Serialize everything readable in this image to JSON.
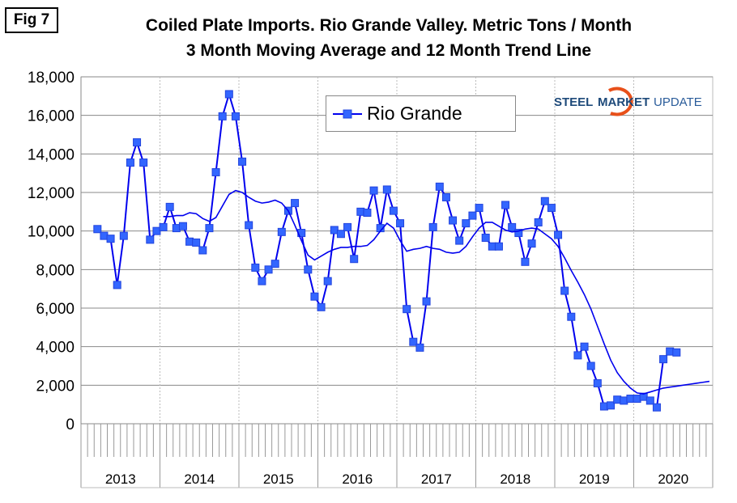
{
  "fig_label": "Fig 7",
  "chart_data": {
    "type": "line",
    "title": "Coiled Plate Imports. Rio Grande Valley. Metric Tons / Month",
    "subtitle": "3 Month Moving Average and 12 Month Trend Line",
    "ylim": [
      0,
      18000
    ],
    "yticks": [
      "0",
      "2,000",
      "4,000",
      "6,000",
      "8,000",
      "10,000",
      "12,000",
      "14,000",
      "16,000",
      "18,000"
    ],
    "years": [
      "2013",
      "2014",
      "2015",
      "2016",
      "2017",
      "2018",
      "2019",
      "2020"
    ],
    "legend": {
      "label": "Rio Grande",
      "placement": "top-center"
    },
    "logo": {
      "text1": "STEEL",
      "text2": "MARKET",
      "text3": "UPDATE"
    },
    "color": "#0000ee",
    "marker_color": "#3366ff",
    "series": [
      {
        "name": "Rio Grande",
        "start": "2013-03",
        "values": [
          10100,
          9750,
          9600,
          7200,
          9750,
          13550,
          14600,
          13550,
          9550,
          10000,
          10200,
          11250,
          10150,
          10250,
          9450,
          9400,
          9000,
          10150,
          13050,
          15950,
          17100,
          15950,
          13600,
          10300,
          8100,
          7400,
          8000,
          8300,
          9950,
          11050,
          11450,
          9900,
          8000,
          6600,
          6050,
          7400,
          10050,
          9850,
          10200,
          8550,
          11000,
          10950,
          12100,
          10150,
          12150,
          11050,
          10400,
          5950,
          4250,
          3950,
          6350,
          10200,
          12300,
          11750,
          10550,
          9500,
          10400,
          10800,
          11200,
          9650,
          9200,
          9200,
          11350,
          10200,
          9900,
          8400,
          9350,
          10450,
          11550,
          11200,
          9800,
          6900,
          5550,
          3550,
          4000,
          3000,
          2100,
          900,
          950,
          1250,
          1200,
          1300,
          1300,
          1400,
          1200,
          850,
          3350,
          3750,
          3700
        ]
      },
      {
        "name": "12 Month Trend",
        "start": "2014-01",
        "values": [
          10750,
          10750,
          10800,
          10800,
          10950,
          10900,
          10650,
          10500,
          10700,
          11300,
          11900,
          12100,
          12000,
          11750,
          11550,
          11450,
          11500,
          11600,
          11450,
          11050,
          10300,
          9500,
          8750,
          8500,
          8700,
          8900,
          9050,
          9150,
          9150,
          9200,
          9200,
          9250,
          9550,
          10000,
          10400,
          10150,
          9500,
          8950,
          9050,
          9100,
          9200,
          9100,
          9050,
          8900,
          8850,
          8900,
          9200,
          9700,
          10150,
          10450,
          10450,
          10250,
          10050,
          9950,
          10000,
          10100,
          10150,
          10100,
          9850,
          9600,
          9200,
          8600,
          7950,
          7350,
          6700,
          5950,
          5050,
          4150,
          3300,
          2650,
          2200,
          1850,
          1600,
          1550,
          1650,
          1750,
          1850,
          1900,
          1950,
          2000,
          2050,
          2100,
          2150,
          2200
        ]
      }
    ]
  }
}
